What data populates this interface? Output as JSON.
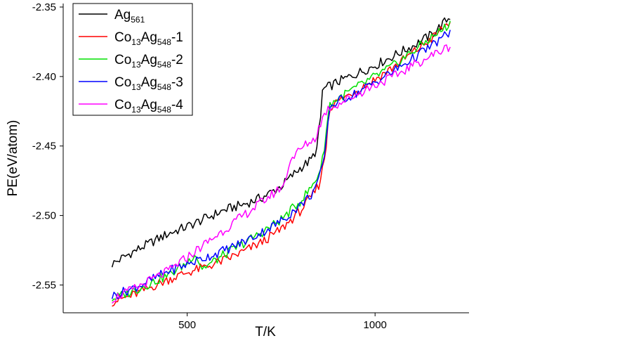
{
  "chart_data": {
    "type": "line",
    "xlabel": "T/K",
    "ylabel": "PE(eV/atom)",
    "xlim": [
      170,
      1250
    ],
    "ylim": [
      -2.57,
      -2.35
    ],
    "xticks": [
      500,
      1000
    ],
    "xtick_labels": [
      "500",
      "1000"
    ],
    "yticks": [
      -2.35,
      -2.4,
      -2.45,
      -2.5,
      -2.55
    ],
    "ytick_labels": [
      "-2.35",
      "-2.40",
      "-2.45",
      "-2.50",
      "-2.55"
    ],
    "legend_position": "top-left",
    "series": [
      {
        "name": "Ag561",
        "legend": {
          "base": "Ag",
          "sub1": "561",
          "mid": "",
          "sub2": "",
          "suffix": ""
        },
        "color": "#000000",
        "x": [
          300,
          350,
          400,
          450,
          500,
          550,
          600,
          650,
          700,
          750,
          800,
          830,
          845,
          855,
          860,
          870,
          880,
          900,
          950,
          1000,
          1050,
          1100,
          1150,
          1200
        ],
        "y": [
          -2.535,
          -2.527,
          -2.52,
          -2.513,
          -2.508,
          -2.502,
          -2.496,
          -2.492,
          -2.487,
          -2.479,
          -2.466,
          -2.46,
          -2.452,
          -2.43,
          -2.41,
          -2.408,
          -2.407,
          -2.404,
          -2.398,
          -2.392,
          -2.385,
          -2.378,
          -2.37,
          -2.357
        ]
      },
      {
        "name": "Co13Ag548-1",
        "legend": {
          "base": "Co",
          "sub1": "13",
          "mid": "Ag",
          "sub2": "548",
          "suffix": "-1"
        },
        "color": "#ff0000",
        "x": [
          300,
          350,
          400,
          450,
          500,
          550,
          600,
          650,
          700,
          750,
          800,
          830,
          850,
          860,
          870,
          875,
          880,
          900,
          950,
          1000,
          1050,
          1100,
          1150,
          1200
        ],
        "y": [
          -2.562,
          -2.558,
          -2.552,
          -2.546,
          -2.541,
          -2.537,
          -2.532,
          -2.526,
          -2.519,
          -2.51,
          -2.497,
          -2.487,
          -2.478,
          -2.467,
          -2.45,
          -2.432,
          -2.422,
          -2.418,
          -2.41,
          -2.402,
          -2.393,
          -2.383,
          -2.373,
          -2.36
        ]
      },
      {
        "name": "Co13Ag548-2",
        "legend": {
          "base": "Co",
          "sub1": "13",
          "mid": "Ag",
          "sub2": "548",
          "suffix": "-2"
        },
        "color": "#00e000",
        "x": [
          300,
          350,
          400,
          450,
          500,
          520,
          540,
          560,
          600,
          650,
          700,
          750,
          800,
          830,
          850,
          860,
          870,
          875,
          880,
          900,
          950,
          1000,
          1050,
          1100,
          1150,
          1200
        ],
        "y": [
          -2.56,
          -2.555,
          -2.549,
          -2.543,
          -2.534,
          -2.527,
          -2.538,
          -2.535,
          -2.528,
          -2.52,
          -2.512,
          -2.503,
          -2.49,
          -2.48,
          -2.47,
          -2.46,
          -2.44,
          -2.428,
          -2.42,
          -2.416,
          -2.408,
          -2.4,
          -2.392,
          -2.382,
          -2.372,
          -2.362
        ]
      },
      {
        "name": "Co13Ag548-3",
        "legend": {
          "base": "Co",
          "sub1": "13",
          "mid": "Ag",
          "sub2": "548",
          "suffix": "-3"
        },
        "color": "#0000ff",
        "x": [
          300,
          350,
          400,
          450,
          500,
          550,
          600,
          650,
          700,
          750,
          800,
          830,
          850,
          860,
          870,
          875,
          880,
          900,
          950,
          1000,
          1050,
          1100,
          1150,
          1200
        ],
        "y": [
          -2.558,
          -2.553,
          -2.547,
          -2.54,
          -2.535,
          -2.53,
          -2.525,
          -2.519,
          -2.512,
          -2.504,
          -2.493,
          -2.485,
          -2.475,
          -2.465,
          -2.448,
          -2.43,
          -2.422,
          -2.418,
          -2.412,
          -2.404,
          -2.396,
          -2.387,
          -2.378,
          -2.368
        ]
      },
      {
        "name": "Co13Ag548-4",
        "legend": {
          "base": "Co",
          "sub1": "13",
          "mid": "Ag",
          "sub2": "548",
          "suffix": "-4"
        },
        "color": "#ff00ff",
        "x": [
          300,
          350,
          400,
          450,
          500,
          550,
          600,
          650,
          700,
          740,
          760,
          770,
          780,
          800,
          820,
          840,
          850,
          860,
          870,
          880,
          900,
          950,
          1000,
          1050,
          1100,
          1150,
          1200
        ],
        "y": [
          -2.56,
          -2.554,
          -2.547,
          -2.54,
          -2.53,
          -2.52,
          -2.51,
          -2.5,
          -2.49,
          -2.482,
          -2.477,
          -2.463,
          -2.458,
          -2.453,
          -2.448,
          -2.445,
          -2.437,
          -2.43,
          -2.425,
          -2.422,
          -2.42,
          -2.413,
          -2.406,
          -2.4,
          -2.392,
          -2.385,
          -2.378
        ]
      }
    ]
  }
}
